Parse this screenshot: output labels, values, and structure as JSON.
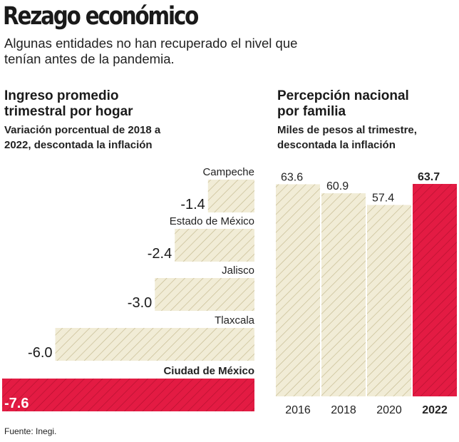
{
  "header": {
    "title": "Rezago económico",
    "subtitle": "Algunas entidades no han recuperado el nivel que tenían antes de la pandemia."
  },
  "colors": {
    "highlight": "#e31b43",
    "bar_fill": "#f1ecd6",
    "hatch": "#c4b98e"
  },
  "chart_data": [
    {
      "type": "bar",
      "orientation": "horizontal",
      "title": "Ingreso promedio trimestral por hogar",
      "subtitle": "Variación porcentual de 2018 a 2022, descontada la inflación",
      "categories": [
        "Campeche",
        "Estado de México",
        "Jalisco",
        "Tlaxcala",
        "Ciudad de México"
      ],
      "values": [
        -1.4,
        -2.4,
        -3.0,
        -6.0,
        -7.6
      ],
      "labels": [
        "-1.4",
        "-2.4",
        "-3.0",
        "-6.0",
        "-7.6"
      ],
      "highlight": "Ciudad de México",
      "xlim": [
        -7.6,
        0
      ]
    },
    {
      "type": "bar",
      "orientation": "vertical",
      "title": "Percepción nacional por familia",
      "subtitle": "Miles de pesos al trimestre, descontada la inflación",
      "categories": [
        "2016",
        "2018",
        "2020",
        "2022"
      ],
      "values": [
        63.6,
        60.9,
        57.4,
        63.7
      ],
      "labels": [
        "63.6",
        "60.9",
        "57.4",
        "63.7"
      ],
      "highlight": "2022",
      "ylim": [
        0,
        63.7
      ]
    }
  ],
  "footer": {
    "source": "Fuente: Inegi."
  }
}
